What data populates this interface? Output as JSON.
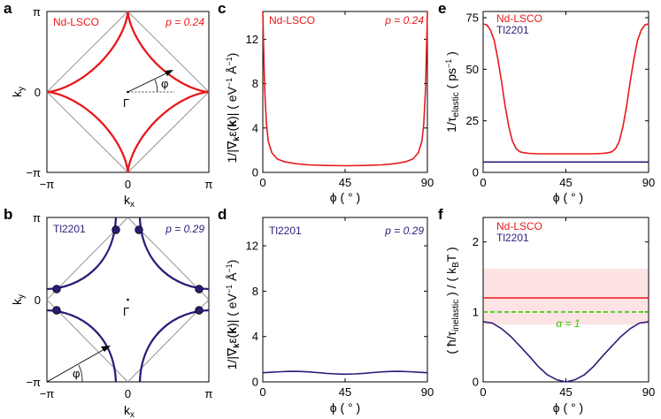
{
  "colors": {
    "red": "#e8191c",
    "navy": "#2b1c7a",
    "green": "#33cc00",
    "band": "#fde3e3",
    "diamond": "#7a7a7a"
  },
  "panels": {
    "a": {
      "label": "a",
      "material": "Nd-LSCO",
      "doping": "p = 0.24",
      "xlabel": "k_x",
      "ylabel": "k_y",
      "xticks": [
        "−π",
        "0",
        "π"
      ],
      "yticks": [
        "π",
        "0",
        "−π"
      ],
      "phi_symbol": "φ",
      "gamma": "Γ"
    },
    "b": {
      "label": "b",
      "material": "Tl2201",
      "doping": "p = 0.29",
      "xlabel": "k_x",
      "ylabel": "k_y",
      "xticks": [
        "−π",
        "0",
        "π"
      ],
      "yticks": [
        "π",
        "0",
        "−π"
      ],
      "phi_symbol": "φ",
      "gamma": "Γ"
    }
  },
  "chart_data": [
    {
      "panel": "c",
      "type": "line",
      "material": "Nd-LSCO",
      "doping": "p = 0.24",
      "xlabel": "ϕ (°)",
      "ylabel": "1/|∇k ε(k)| (eV⁻¹ Å⁻¹)",
      "xlim": [
        0,
        90
      ],
      "ylim": [
        0,
        14.5
      ],
      "xticks": [
        0,
        45,
        90
      ],
      "yticks": [
        0,
        4,
        8,
        12
      ],
      "series": [
        {
          "name": "Nd-LSCO",
          "color": "#e8191c",
          "x": [
            0,
            0.5,
            1,
            2,
            3,
            5,
            8,
            12,
            18,
            25,
            35,
            45,
            55,
            65,
            72,
            78,
            82,
            85,
            87,
            88,
            89,
            89.5,
            90
          ],
          "y": [
            14.5,
            11,
            7.5,
            4.4,
            2.8,
            1.75,
            1.2,
            0.95,
            0.78,
            0.68,
            0.62,
            0.6,
            0.62,
            0.68,
            0.78,
            0.95,
            1.2,
            1.75,
            2.8,
            4.4,
            7.5,
            11,
            14.5
          ]
        }
      ]
    },
    {
      "panel": "d",
      "type": "line",
      "material": "Tl2201",
      "doping": "p = 0.29",
      "xlabel": "ϕ (°)",
      "ylabel": "1/|∇k ε(k)| (eV⁻¹ Å⁻¹)",
      "xlim": [
        0,
        90
      ],
      "ylim": [
        0,
        14.5
      ],
      "xticks": [
        0,
        45,
        90
      ],
      "yticks": [
        0,
        4,
        8,
        12
      ],
      "series": [
        {
          "name": "Tl2201",
          "color": "#2b1c7a",
          "x": [
            0,
            5,
            10,
            15,
            20,
            25,
            30,
            35,
            40,
            45,
            50,
            55,
            60,
            65,
            70,
            75,
            80,
            85,
            90
          ],
          "y": [
            0.8,
            0.85,
            0.9,
            0.93,
            0.92,
            0.88,
            0.82,
            0.75,
            0.7,
            0.68,
            0.7,
            0.75,
            0.82,
            0.88,
            0.92,
            0.93,
            0.9,
            0.85,
            0.8
          ]
        }
      ]
    },
    {
      "panel": "e",
      "type": "line",
      "xlabel": "ϕ (°)",
      "ylabel": "1/τelastic (ps⁻¹)",
      "xlim": [
        0,
        90
      ],
      "ylim": [
        0,
        78
      ],
      "xticks": [
        0,
        45,
        90
      ],
      "yticks": [
        0,
        25,
        50,
        75
      ],
      "series": [
        {
          "name": "Nd-LSCO",
          "color": "#e8191c",
          "x": [
            0,
            2,
            4,
            6,
            8,
            10,
            12,
            14,
            16,
            18,
            20,
            22,
            25,
            30,
            45,
            60,
            65,
            68,
            70,
            72,
            74,
            76,
            78,
            80,
            82,
            84,
            86,
            88,
            90
          ],
          "y": [
            72,
            71.5,
            69,
            64,
            55,
            44,
            32,
            22,
            15,
            11.5,
            10,
            9.5,
            9.2,
            9,
            9,
            9,
            9.2,
            9.5,
            10,
            11.5,
            15,
            22,
            32,
            44,
            55,
            64,
            69,
            71.5,
            72
          ]
        },
        {
          "name": "Tl2201",
          "color": "#2b1c7a",
          "x": [
            0,
            90
          ],
          "y": [
            5,
            5
          ]
        }
      ]
    },
    {
      "panel": "f",
      "type": "line",
      "xlabel": "ϕ (°)",
      "ylabel": "(ħ/τinelastic) / (kBT)",
      "xlim": [
        0,
        90
      ],
      "ylim": [
        0,
        2.35
      ],
      "xticks": [
        0,
        45,
        90
      ],
      "yticks": [
        0,
        1,
        2
      ],
      "band": {
        "name": "Nd-LSCO uncertainty",
        "ymin": 0.82,
        "ymax": 1.62
      },
      "annotation": "α = 1",
      "series": [
        {
          "name": "Nd-LSCO",
          "color": "#e8191c",
          "x": [
            0,
            90
          ],
          "y": [
            1.2,
            1.2
          ]
        },
        {
          "name": "α = 1",
          "color": "#33cc00",
          "dashed": true,
          "x": [
            0,
            90
          ],
          "y": [
            1.0,
            1.0
          ]
        },
        {
          "name": "Tl2201",
          "color": "#2b1c7a",
          "x": [
            0,
            5,
            10,
            15,
            20,
            25,
            30,
            35,
            40,
            45,
            50,
            55,
            60,
            65,
            70,
            75,
            80,
            85,
            90
          ],
          "y": [
            0.86,
            0.84,
            0.76,
            0.65,
            0.51,
            0.37,
            0.22,
            0.1,
            0.03,
            0.0,
            0.03,
            0.1,
            0.22,
            0.37,
            0.51,
            0.65,
            0.76,
            0.84,
            0.86
          ]
        }
      ]
    }
  ]
}
